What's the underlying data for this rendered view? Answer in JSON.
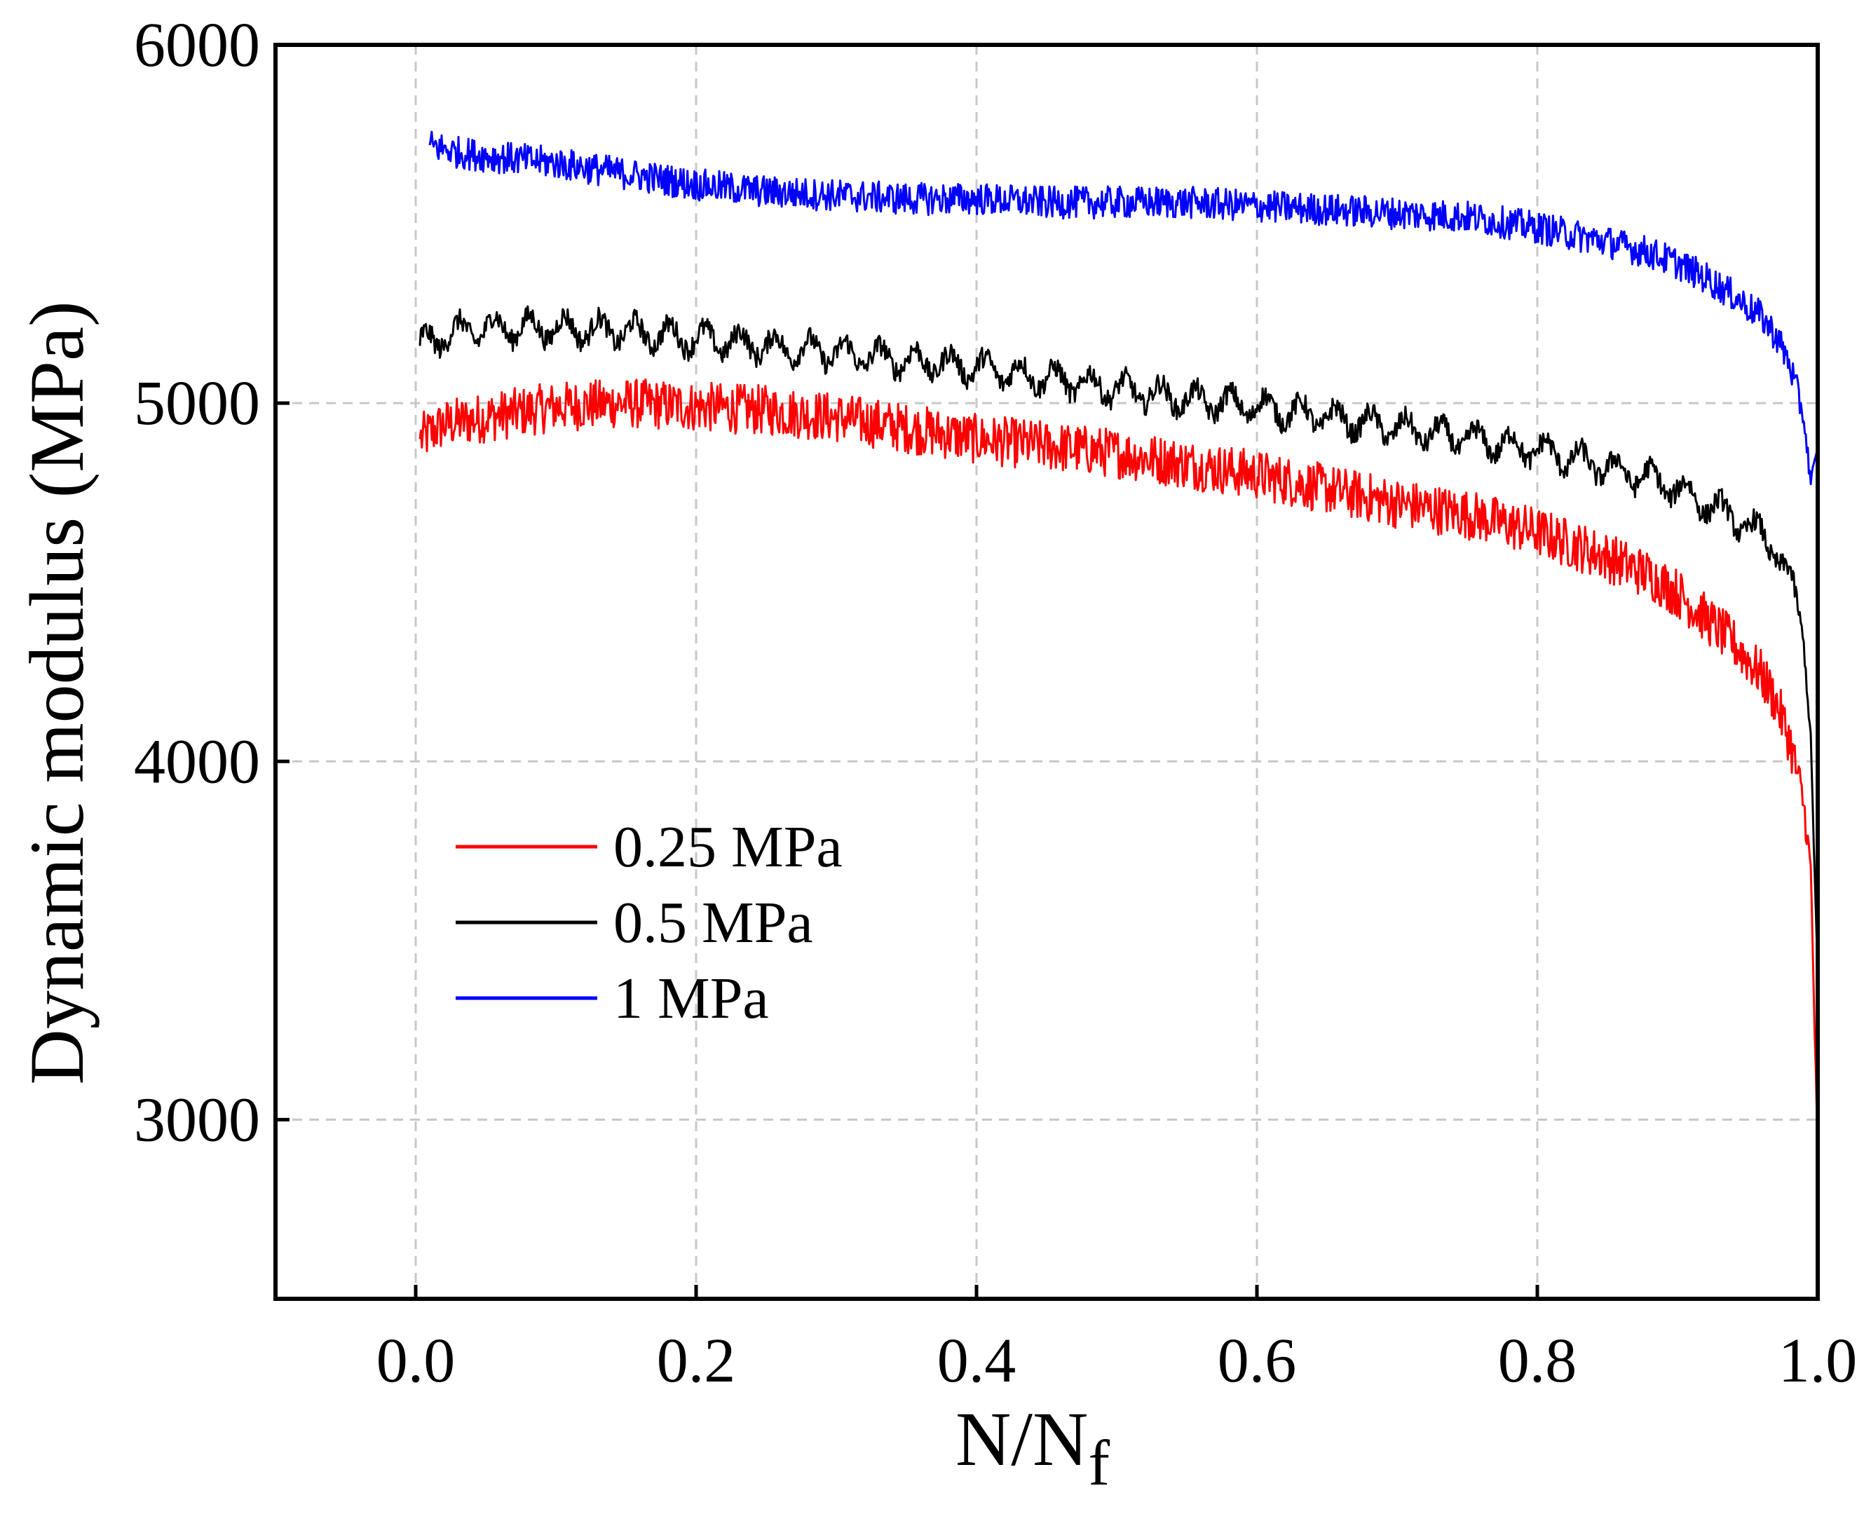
{
  "chart_data": {
    "type": "line",
    "title": "",
    "xlabel": "N/N",
    "xlabel_subscript": "f",
    "ylabel": "Dynamic modulus (MPa)",
    "xlim": [
      -0.1,
      1.0
    ],
    "ylim": [
      2500,
      6000
    ],
    "xticks": [
      0.0,
      0.2,
      0.4,
      0.6,
      0.8,
      1.0
    ],
    "xtick_labels": [
      "0.0",
      "0.2",
      "0.4",
      "0.6",
      "0.8",
      "1.0"
    ],
    "yticks": [
      3000,
      4000,
      5000,
      6000
    ],
    "ytick_labels": [
      "3000",
      "4000",
      "5000",
      "6000"
    ],
    "grid": true,
    "legend_position": "center-left",
    "series": [
      {
        "name": "0.25 MPa",
        "color": "#ff0000",
        "noise": 70,
        "x": [
          0.003,
          0.02,
          0.05,
          0.1,
          0.15,
          0.2,
          0.25,
          0.3,
          0.35,
          0.4,
          0.45,
          0.5,
          0.55,
          0.6,
          0.65,
          0.7,
          0.75,
          0.8,
          0.85,
          0.88,
          0.9,
          0.92,
          0.94,
          0.96,
          0.97,
          0.98,
          0.99,
          0.995,
          1.0
        ],
        "y": [
          4900,
          4940,
          4960,
          4990,
          5000,
          4990,
          4980,
          4960,
          4930,
          4900,
          4880,
          4860,
          4830,
          4800,
          4760,
          4720,
          4690,
          4640,
          4570,
          4520,
          4470,
          4400,
          4330,
          4240,
          4170,
          4060,
          3880,
          3700,
          2900
        ]
      },
      {
        "name": "0.5 MPa",
        "color": "#000000",
        "noise": 30,
        "wave_amp": 35,
        "x": [
          0.003,
          0.02,
          0.05,
          0.1,
          0.15,
          0.2,
          0.25,
          0.3,
          0.35,
          0.4,
          0.45,
          0.5,
          0.55,
          0.6,
          0.65,
          0.7,
          0.75,
          0.8,
          0.85,
          0.88,
          0.9,
          0.92,
          0.94,
          0.96,
          0.97,
          0.98,
          0.99,
          0.995,
          1.0
        ],
        "y": [
          5160,
          5190,
          5210,
          5210,
          5200,
          5180,
          5160,
          5140,
          5120,
          5100,
          5070,
          5040,
          5010,
          4990,
          4960,
          4930,
          4900,
          4870,
          4820,
          4790,
          4760,
          4720,
          4680,
          4630,
          4590,
          4510,
          4350,
          4100,
          3400
        ]
      },
      {
        "name": "1 MPa",
        "color": "#0000ff",
        "noise": 45,
        "x": [
          0.01,
          0.03,
          0.05,
          0.1,
          0.15,
          0.2,
          0.25,
          0.3,
          0.35,
          0.4,
          0.45,
          0.5,
          0.55,
          0.6,
          0.65,
          0.7,
          0.75,
          0.8,
          0.85,
          0.88,
          0.9,
          0.92,
          0.94,
          0.96,
          0.97,
          0.98,
          0.99,
          0.995,
          1.0
        ],
        "y": [
          5720,
          5700,
          5690,
          5670,
          5640,
          5610,
          5590,
          5580,
          5570,
          5570,
          5560,
          5560,
          5560,
          5550,
          5540,
          5530,
          5520,
          5490,
          5450,
          5420,
          5390,
          5350,
          5300,
          5240,
          5190,
          5110,
          4960,
          4780,
          4870
        ]
      }
    ]
  }
}
